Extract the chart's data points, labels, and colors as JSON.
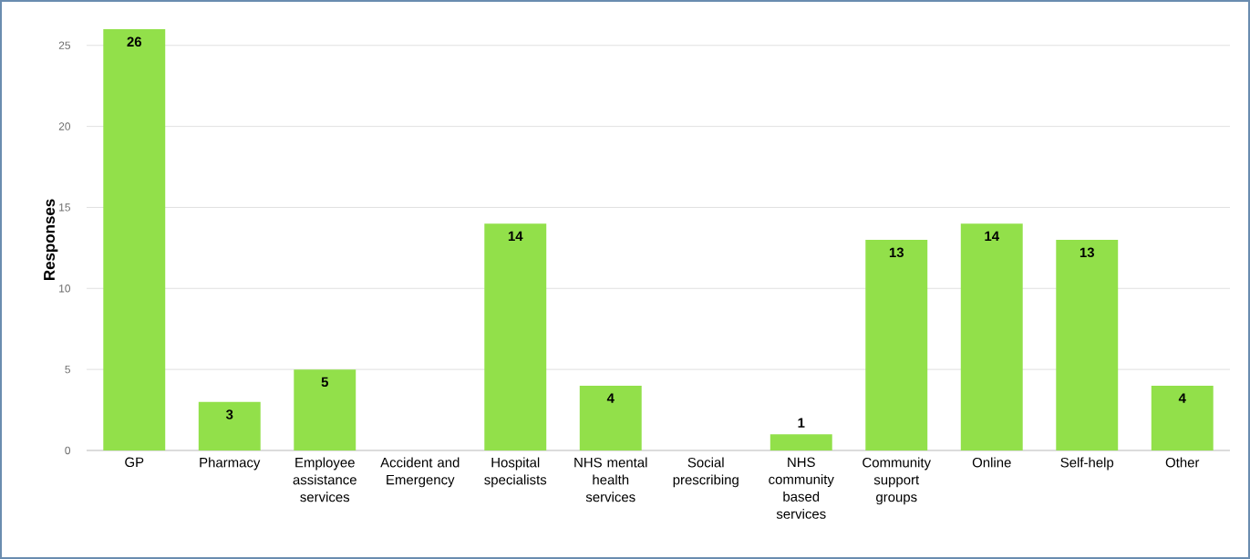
{
  "chart_data": {
    "type": "bar",
    "ylabel": "Responses",
    "categories": [
      "GP",
      "Pharmacy",
      "Employee assistance services",
      "Accident and Emergency",
      "Hospital specialists",
      "NHS mental health services",
      "Social prescribing",
      "NHS community based services",
      "Community support groups",
      "Online",
      "Self-help",
      "Other"
    ],
    "values": [
      26,
      3,
      5,
      0,
      14,
      4,
      0,
      1,
      13,
      14,
      13,
      4
    ],
    "value_labels": [
      "26",
      "3",
      "5",
      null,
      "14",
      "4",
      null,
      "1",
      "13",
      "14",
      "13",
      "4"
    ],
    "color": "#92e04a",
    "ylim": [
      0,
      26
    ],
    "yticks": [
      0,
      5,
      10,
      15,
      20,
      25
    ],
    "grid": "y"
  }
}
